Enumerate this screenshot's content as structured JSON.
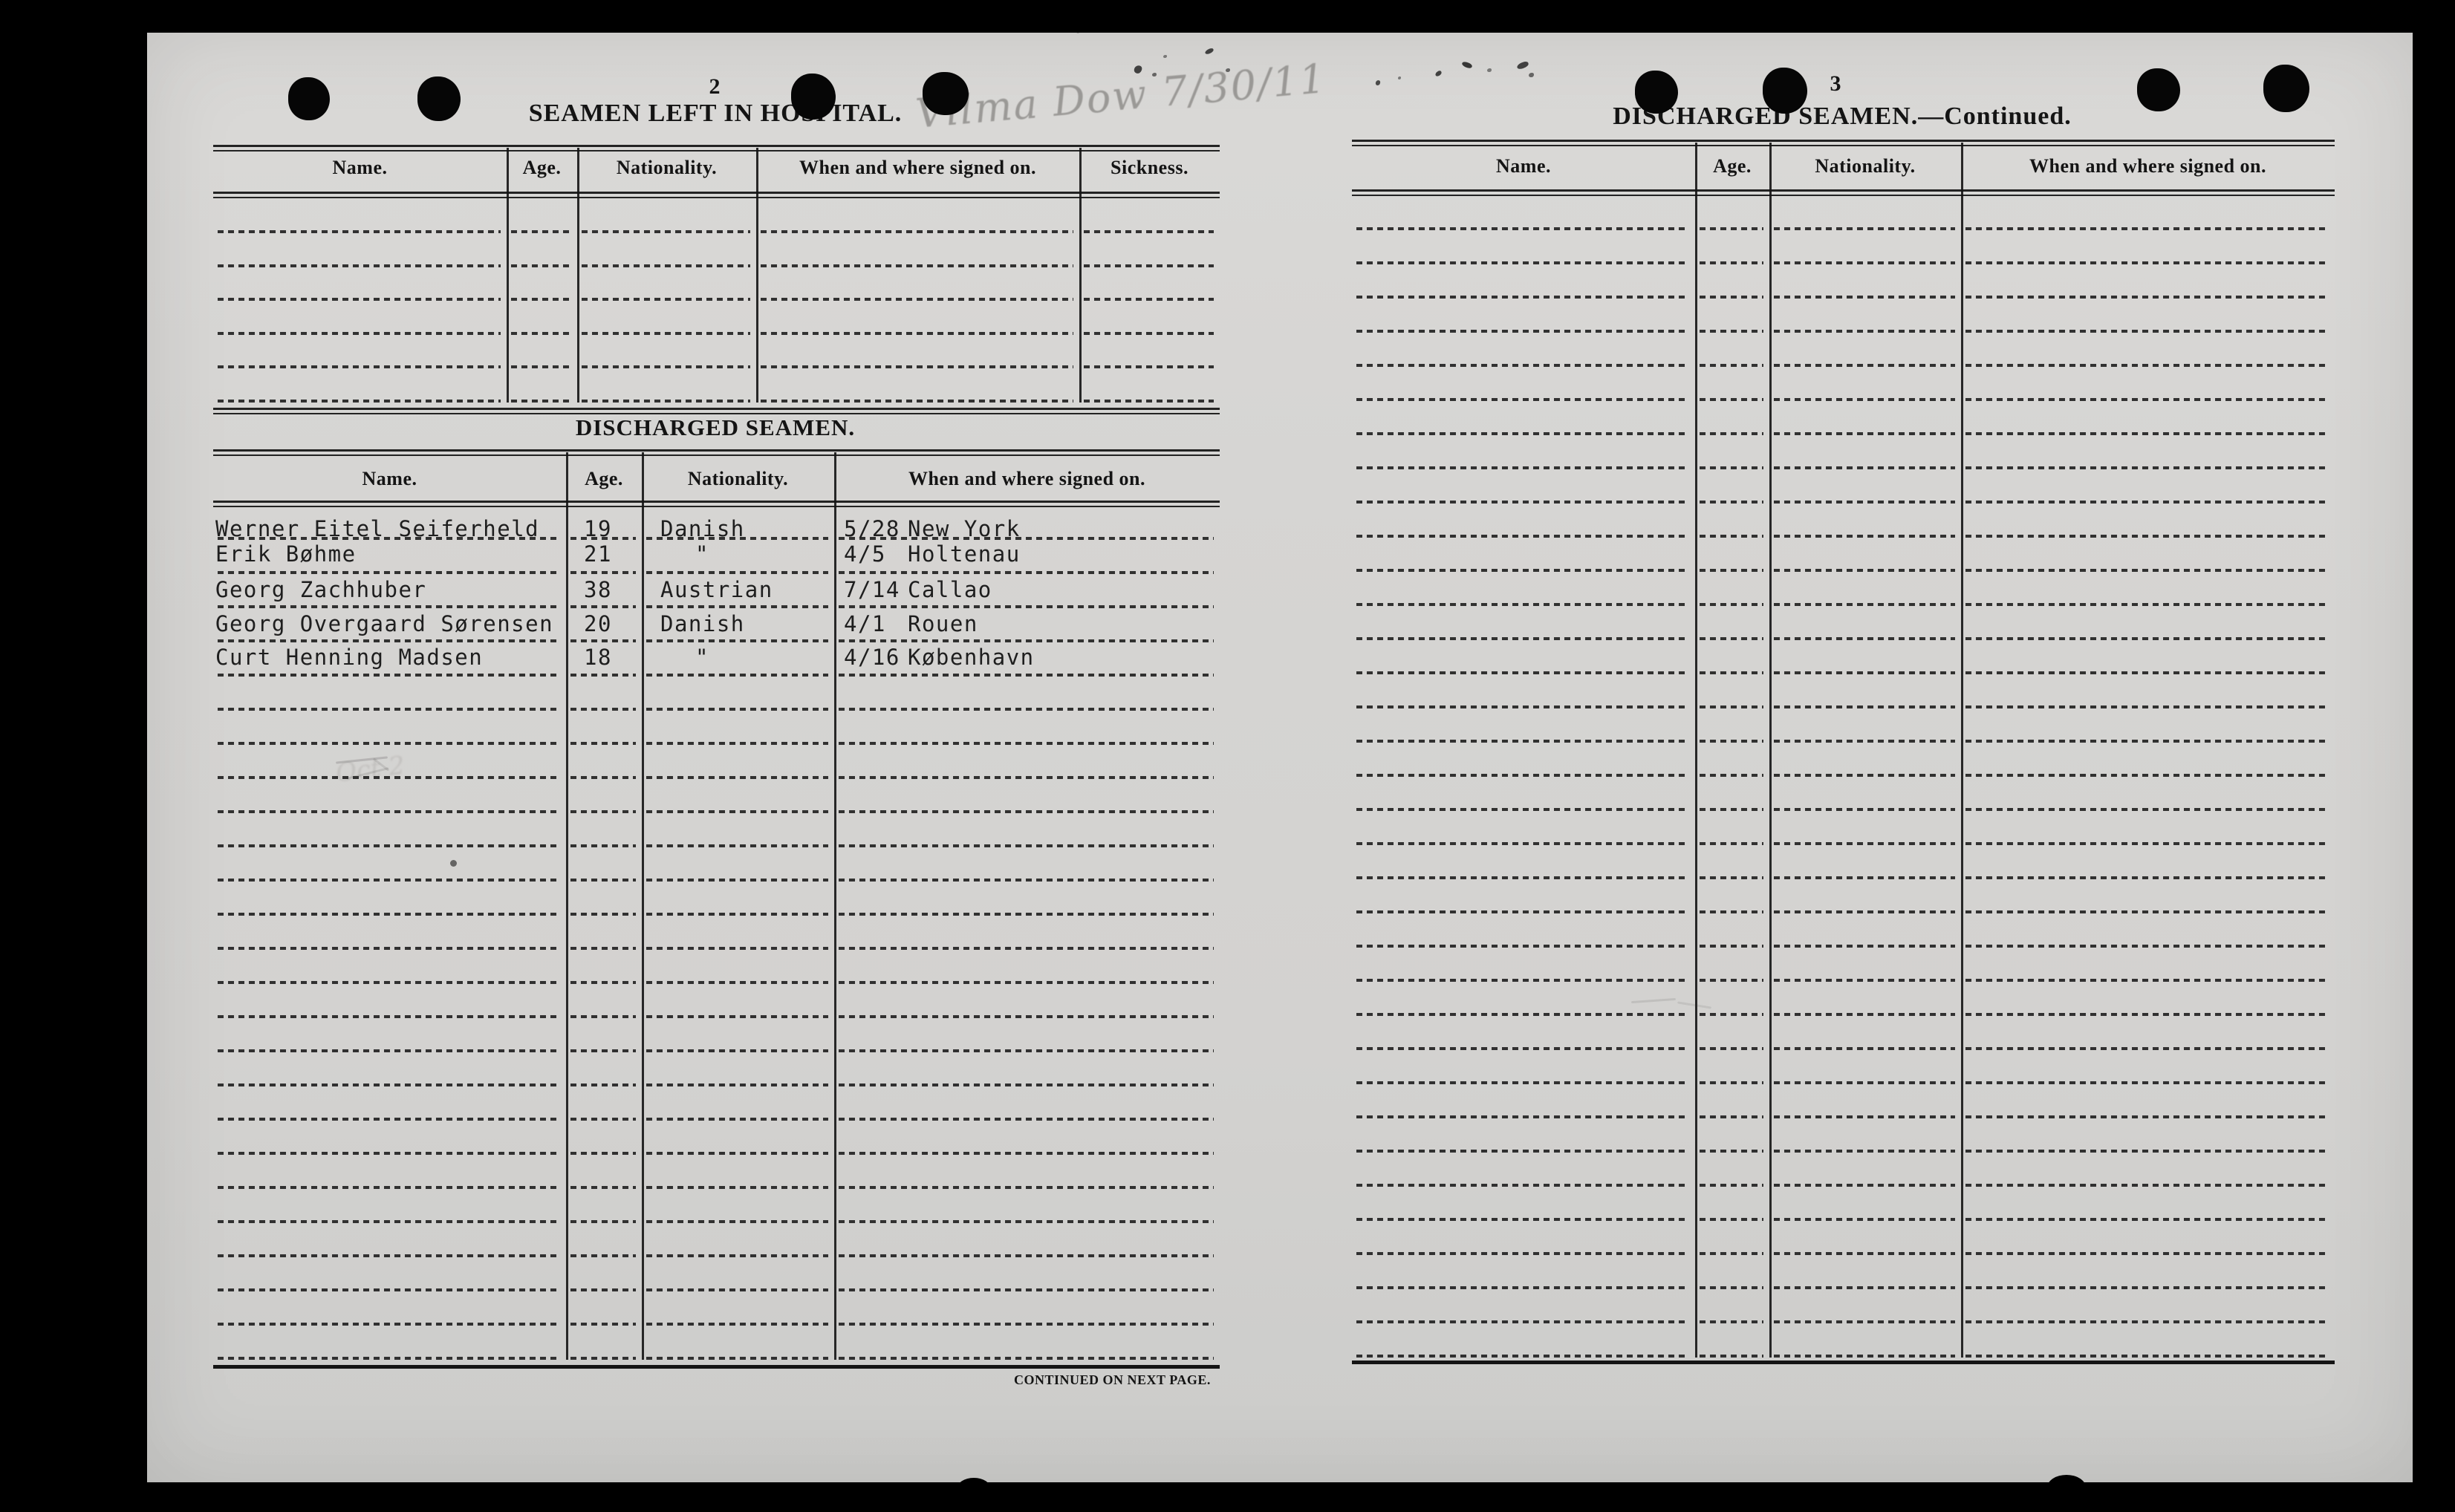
{
  "annotations": {
    "handwritten_note": "Vilma Dow 7/30/11",
    "faint_pencil_note": "Oct 2",
    "continued_note": "CONTINUED ON NEXT PAGE."
  },
  "left_page": {
    "page_number": "2",
    "title": "SEAMEN LEFT IN HOSPITAL.",
    "hospital_table": {
      "columns": [
        "Name.",
        "Age.",
        "Nationality.",
        "When and where signed on.",
        "Sickness."
      ],
      "entries": [],
      "empty_row_count": 6
    },
    "discharged_section_title": "DISCHARGED SEAMEN.",
    "discharged_table": {
      "columns": [
        "Name.",
        "Age.",
        "Nationality.",
        "When and where signed on."
      ],
      "entries": [
        {
          "name": "Werner Eitel Seiferheld",
          "age": "19",
          "nationality": "Danish",
          "signed_on_date": "5/28",
          "signed_on_place": "New York"
        },
        {
          "name": "Erik Bøhme",
          "age": "21",
          "nationality": "\"",
          "signed_on_date": "4/5",
          "signed_on_place": "Holtenau"
        },
        {
          "name": "Georg Zachhuber",
          "age": "38",
          "nationality": "Austrian",
          "signed_on_date": "7/14",
          "signed_on_place": "Callao"
        },
        {
          "name": "Georg Overgaard Sørensen",
          "age": "20",
          "nationality": "Danish",
          "signed_on_date": "4/1",
          "signed_on_place": "Rouen"
        },
        {
          "name": "Curt Henning Madsen",
          "age": "18",
          "nationality": "\"",
          "signed_on_date": "4/16",
          "signed_on_place": "København"
        }
      ],
      "empty_row_count": 20
    }
  },
  "right_page": {
    "page_number": "3",
    "title": "DISCHARGED SEAMEN.—Continued.",
    "table": {
      "columns": [
        "Name.",
        "Age.",
        "Nationality.",
        "When and where signed on."
      ],
      "entries": [],
      "empty_row_count": 34
    }
  },
  "colors": {
    "background": "#000000",
    "paper": "#d5d4d2",
    "ink": "#141414",
    "typewriter_ink": "#1e1e1e",
    "pencil": "#6f6d6a"
  }
}
